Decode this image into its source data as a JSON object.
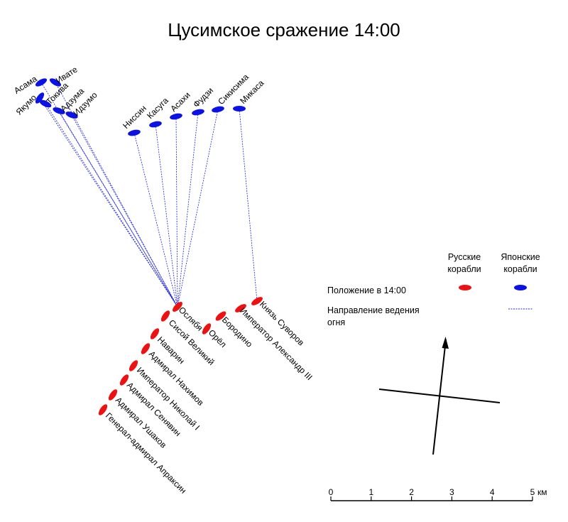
{
  "title": "Цусимское сражение 14:00",
  "colors": {
    "russian": "#ee1111",
    "japanese": "#0a12e6",
    "fire_line": "#1a22dd",
    "ink": "#000000"
  },
  "japanese_ships": [
    {
      "name": "Асама"
    },
    {
      "name": "Ивате"
    },
    {
      "name": "Якумо"
    },
    {
      "name": "Токива"
    },
    {
      "name": "Адзума"
    },
    {
      "name": "Идзумо"
    },
    {
      "name": "Ниссин"
    },
    {
      "name": "Касуга"
    },
    {
      "name": "Асахи"
    },
    {
      "name": "Фудзи"
    },
    {
      "name": "Сикисима"
    },
    {
      "name": "Микаса"
    }
  ],
  "russian_ships": [
    {
      "name": "Князь Суворов"
    },
    {
      "name": "Император Александр III"
    },
    {
      "name": "Бородино"
    },
    {
      "name": "Орёл"
    },
    {
      "name": "Ослябя"
    },
    {
      "name": "Сисой Великий"
    },
    {
      "name": "Наварин"
    },
    {
      "name": "Адмирал Нахимов"
    },
    {
      "name": "Император Николай I"
    },
    {
      "name": "Адмирал Сенявин"
    },
    {
      "name": "Адмирал Ушаков"
    },
    {
      "name": "Генерал-адмирал Апраксин"
    }
  ],
  "fire_lines": [
    {
      "from": "Асама",
      "to": "Ослябя"
    },
    {
      "from": "Ивате",
      "to": "Ослябя"
    },
    {
      "from": "Якумо",
      "to": "Ослябя"
    },
    {
      "from": "Токива",
      "to": "Ослябя"
    },
    {
      "from": "Адзума",
      "to": "Ослябя"
    },
    {
      "from": "Идзумо",
      "to": "Ослябя"
    },
    {
      "from": "Ниссин",
      "to": "Ослябя"
    },
    {
      "from": "Касуга",
      "to": "Ослябя"
    },
    {
      "from": "Асахи",
      "to": "Ослябя"
    },
    {
      "from": "Фудзи",
      "to": "Ослябя"
    },
    {
      "from": "Сикисима",
      "to": "Ослябя"
    },
    {
      "from": "Микаса",
      "to": "Князь Суворов"
    }
  ],
  "legend": {
    "russian_header_line1": "Русские",
    "russian_header_line2": "корабли",
    "japanese_header_line1": "Японские",
    "japanese_header_line2": "корабли",
    "position_label": "Положение в 14:00",
    "fire_label_line1": "Направление ведения",
    "fire_label_line2": "огня"
  },
  "scale": {
    "ticks": [
      "0",
      "1",
      "2",
      "3",
      "4",
      "5"
    ],
    "unit": "км"
  }
}
